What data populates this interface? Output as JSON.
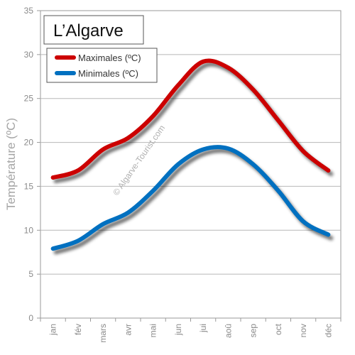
{
  "chart_data": {
    "type": "line",
    "title": "L’Algarve",
    "ylabel": "Température (ºC)",
    "xlabel": "",
    "categories": [
      "jan",
      "fév",
      "mars",
      "avr",
      "mai",
      "jun",
      "jui",
      "aoû",
      "sep",
      "oct",
      "nov",
      "déc"
    ],
    "ylim": [
      0,
      35
    ],
    "yticks": [
      0,
      5,
      10,
      15,
      20,
      25,
      30,
      35
    ],
    "grid": true,
    "legend_position": "top-left",
    "watermark": "© Algarve-Tourist.com",
    "series": [
      {
        "name": "Maximales (ºC)",
        "color": "#cc0000",
        "values": [
          16.0,
          16.8,
          19.2,
          20.5,
          23.0,
          26.5,
          29.2,
          28.5,
          26.0,
          22.5,
          19.0,
          16.8
        ]
      },
      {
        "name": "Minimales (ºC)",
        "color": "#0070c0",
        "values": [
          7.9,
          8.8,
          10.7,
          12.0,
          14.5,
          17.5,
          19.2,
          19.3,
          17.5,
          14.5,
          11.0,
          9.5
        ]
      }
    ]
  }
}
